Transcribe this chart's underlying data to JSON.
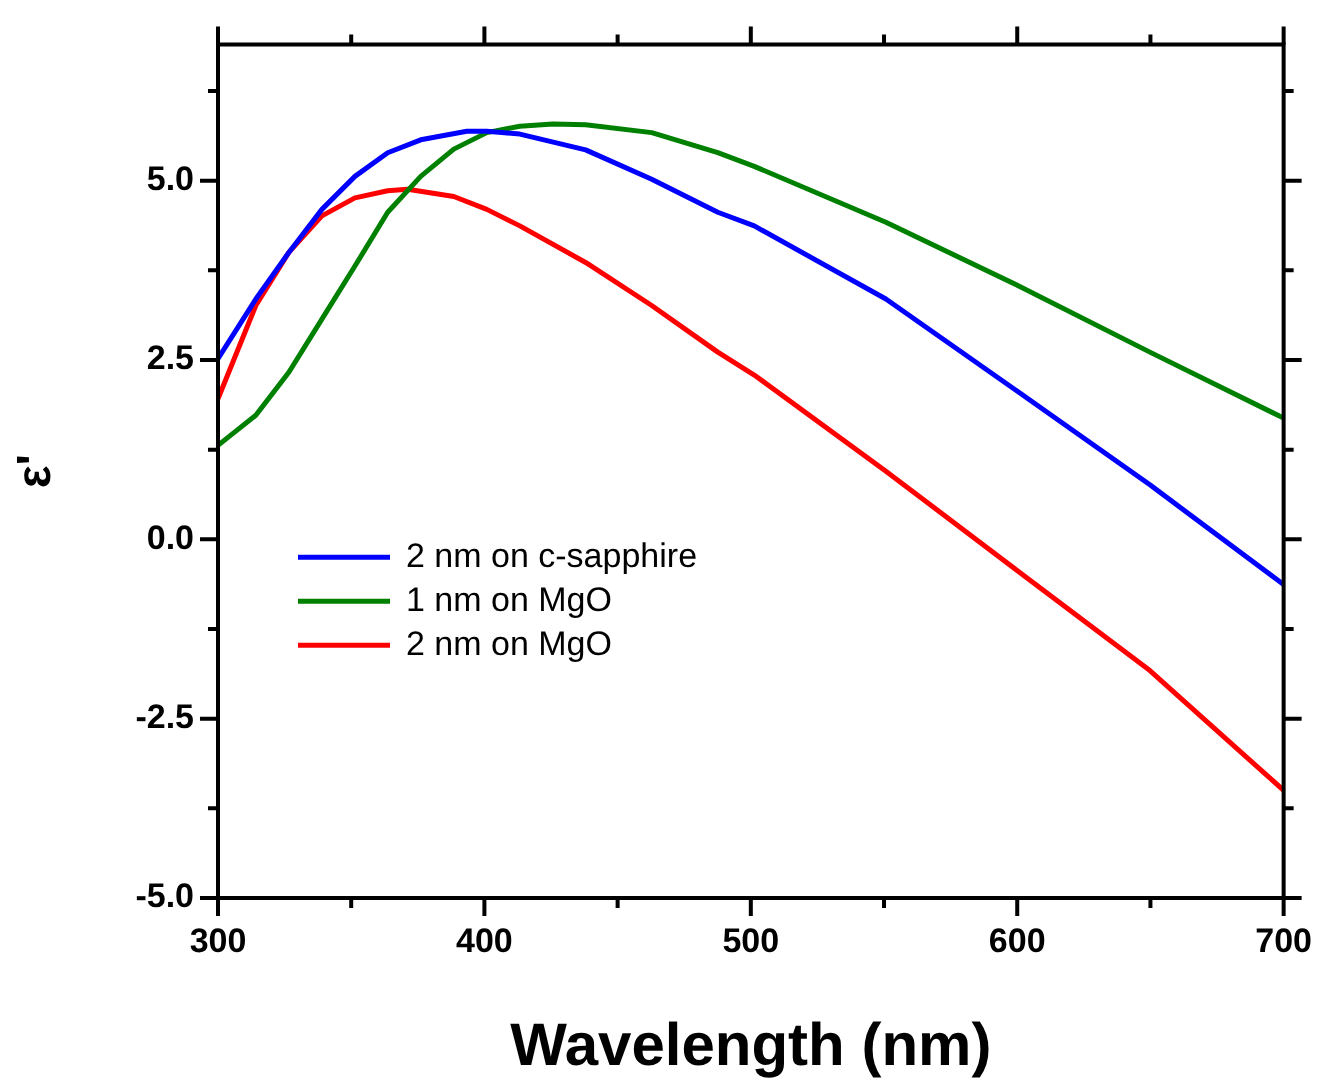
{
  "chart_data": {
    "type": "line",
    "xlabel": "Wavelength (nm)",
    "ylabel": "ε'",
    "xlim": [
      300,
      700
    ],
    "ylim": [
      -5,
      6.9
    ],
    "xticks": [
      300,
      {
        "value": 350,
        "label": null
      },
      400,
      {
        "value": 450,
        "label": null
      },
      500,
      {
        "value": 550,
        "label": null
      },
      600,
      {
        "value": 650,
        "label": null
      },
      700
    ],
    "yticks": [
      {
        "value": -5,
        "label": "-5.0"
      },
      {
        "value": -3.75,
        "label": null
      },
      {
        "value": -2.5,
        "label": "-2.5"
      },
      {
        "value": -1.25,
        "label": null
      },
      {
        "value": 0,
        "label": "0.0"
      },
      {
        "value": 1.25,
        "label": null
      },
      {
        "value": 2.5,
        "label": "2.5"
      },
      {
        "value": 3.75,
        "label": null
      },
      {
        "value": 5,
        "label": "5.0"
      },
      {
        "value": 6.25,
        "label": null
      }
    ],
    "grid": false,
    "legend": "center left",
    "line_style": "solid",
    "series": [
      {
        "name": "2 nm on c-sapphire",
        "color": "#0000ff",
        "x": [
          300,
          314.2,
          326.6,
          339,
          351.4,
          363.7,
          376.1,
          393.4,
          400.9,
          413.3,
          438,
          462.8,
          487.6,
          501.3,
          550.7,
          600.2,
          649.8,
          700
        ],
        "values": [
          2.52,
          3.35,
          4.0,
          4.6,
          5.06,
          5.39,
          5.57,
          5.69,
          5.69,
          5.65,
          5.43,
          5.02,
          4.56,
          4.37,
          3.35,
          2.06,
          0.76,
          -0.63
        ]
      },
      {
        "name": "1 nm on MgO",
        "color": "#008000",
        "x": [
          300,
          314.2,
          326.6,
          339,
          351.4,
          363.7,
          376.1,
          388.5,
          400.9,
          413.3,
          425.7,
          438,
          462.8,
          487.6,
          501.3,
          550.7,
          600.2,
          649.8,
          700
        ],
        "values": [
          1.31,
          1.73,
          2.33,
          3.07,
          3.81,
          4.56,
          5.06,
          5.44,
          5.67,
          5.76,
          5.79,
          5.78,
          5.67,
          5.39,
          5.2,
          4.42,
          3.54,
          2.61,
          1.69
        ]
      },
      {
        "name": "2 nm on MgO",
        "color": "#ff0000",
        "x": [
          300,
          314.2,
          326.6,
          339,
          351.4,
          363.7,
          371.2,
          388.5,
          400.9,
          413.3,
          438,
          462.8,
          487.6,
          501.3,
          550.7,
          600.2,
          649.8,
          700
        ],
        "values": [
          1.96,
          3.26,
          4.0,
          4.51,
          4.76,
          4.86,
          4.88,
          4.78,
          4.6,
          4.37,
          3.86,
          3.26,
          2.61,
          2.29,
          0.95,
          -0.44,
          -1.83,
          -3.5
        ]
      }
    ]
  }
}
